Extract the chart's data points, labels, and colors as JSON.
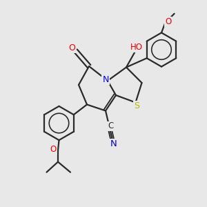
{
  "bg_color": "#e8e8e8",
  "bond_color": "#2a2a2a",
  "bond_width": 1.6,
  "atom_colors": {
    "N": "#0000ee",
    "O": "#ee0000",
    "S": "#b8b800",
    "CN_label": "#0000cc"
  },
  "fs": 8.5
}
